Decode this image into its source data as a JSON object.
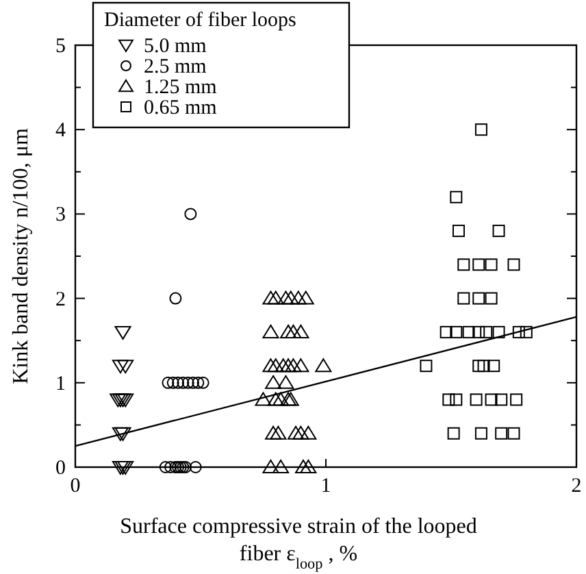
{
  "chart_data": {
    "type": "scatter",
    "xlabel": "Surface compressive strain of the looped fiber ε$_{loop}$ , %",
    "ylabel": "Kink band density  n/100, μm",
    "legend_title": "Diameter of fiber loops",
    "legend": "top left",
    "xlim": [
      0,
      2
    ],
    "ylim": [
      0,
      5
    ],
    "xticks": [
      0,
      1,
      2
    ],
    "yticks": [
      0,
      {
        "value": 0.5,
        "label": null
      },
      1,
      {
        "value": 1.5,
        "label": null
      },
      2,
      {
        "value": 2.5,
        "label": null
      },
      3,
      {
        "value": 3.5,
        "label": null
      },
      4,
      {
        "value": 4.5,
        "label": null
      },
      5
    ],
    "grid": false,
    "series": [
      {
        "name": "5.0 mm",
        "color": "#000000",
        "marker": "triangle-down",
        "x": [
          0.19,
          0.18,
          0.2,
          0.17,
          0.18,
          0.19,
          0.2,
          0.18,
          0.19,
          0.18,
          0.19,
          0.2
        ],
        "values": [
          1.6,
          1.2,
          1.2,
          0.8,
          0.8,
          0.8,
          0.8,
          0.4,
          0.4,
          0,
          0,
          0
        ]
      },
      {
        "name": "2.5 mm",
        "color": "#000000",
        "marker": "circle",
        "x": [
          0.46,
          0.4,
          0.37,
          0.39,
          0.41,
          0.43,
          0.45,
          0.47,
          0.49,
          0.51,
          0.36,
          0.38,
          0.4,
          0.41,
          0.42,
          0.43,
          0.44,
          0.48
        ],
        "values": [
          3,
          2,
          1,
          1,
          1,
          1,
          1,
          1,
          1,
          1,
          0,
          0,
          0,
          0,
          0,
          0,
          0,
          0
        ]
      },
      {
        "name": "1.25 mm",
        "color": "#000000",
        "marker": "triangle",
        "x": [
          0.78,
          0.8,
          0.84,
          0.86,
          0.89,
          0.92,
          0.78,
          0.85,
          0.87,
          0.9,
          0.78,
          0.8,
          0.83,
          0.85,
          0.87,
          0.9,
          0.99,
          0.79,
          0.84,
          0.75,
          0.8,
          0.82,
          0.85,
          0.86,
          0.79,
          0.81,
          0.88,
          0.9,
          0.93,
          0.78,
          0.82,
          0.91,
          0.93
        ],
        "values": [
          2,
          2,
          2,
          2,
          2,
          2,
          1.6,
          1.6,
          1.6,
          1.6,
          1.2,
          1.2,
          1.2,
          1.2,
          1.2,
          1.2,
          1.2,
          1,
          1,
          0.8,
          0.8,
          0.8,
          0.8,
          0.8,
          0.4,
          0.4,
          0.4,
          0.4,
          0.4,
          0,
          0,
          0,
          0
        ]
      },
      {
        "name": "0.65 mm",
        "color": "#000000",
        "marker": "square",
        "x": [
          1.62,
          1.52,
          1.53,
          1.69,
          1.55,
          1.61,
          1.66,
          1.75,
          1.55,
          1.61,
          1.66,
          1.48,
          1.52,
          1.57,
          1.61,
          1.64,
          1.69,
          1.77,
          1.8,
          1.4,
          1.61,
          1.63,
          1.67,
          1.49,
          1.52,
          1.6,
          1.66,
          1.7,
          1.76,
          1.51,
          1.62,
          1.7,
          1.75
        ],
        "values": [
          4,
          3.2,
          2.8,
          2.8,
          2.4,
          2.4,
          2.4,
          2.4,
          2,
          2,
          2,
          1.6,
          1.6,
          1.6,
          1.6,
          1.6,
          1.6,
          1.6,
          1.6,
          1.2,
          1.2,
          1.2,
          1.2,
          0.8,
          0.8,
          0.8,
          0.8,
          0.8,
          0.8,
          0.4,
          0.4,
          0.4,
          0.4
        ]
      },
      {
        "type": "line",
        "color": "#000000",
        "line_style": "solid",
        "marker": "none",
        "x": [
          0,
          2
        ],
        "values": [
          0.25,
          1.78
        ]
      }
    ]
  }
}
